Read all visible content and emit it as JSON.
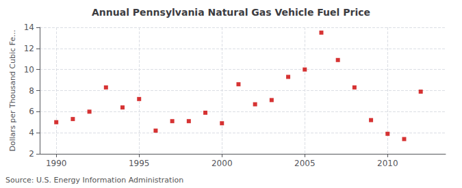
{
  "chart_data": {
    "type": "scatter",
    "title": "Annual Pennsylvania Natural Gas Vehicle Fuel Price",
    "ylabel": "Dollars per Thousand Cubic Fe...",
    "source": "Source: U.S. Energy Information Administration",
    "x": [
      1990,
      1991,
      1992,
      1993,
      1994,
      1995,
      1996,
      1997,
      1998,
      1999,
      2000,
      2001,
      2002,
      2003,
      2004,
      2005,
      2006,
      2007,
      2008,
      2009,
      2010,
      2011,
      2012
    ],
    "values": [
      5.0,
      5.3,
      6.0,
      8.3,
      6.4,
      7.2,
      4.2,
      5.1,
      5.1,
      5.9,
      4.9,
      8.6,
      6.7,
      7.1,
      9.3,
      10.0,
      13.5,
      10.9,
      8.3,
      5.2,
      3.9,
      3.4,
      7.9
    ],
    "color": "#cc0000",
    "marker": "square",
    "xlim": [
      1989,
      2013.5
    ],
    "xticks": [
      1990,
      1995,
      2000,
      2005,
      2010
    ],
    "ylim": [
      2,
      14
    ],
    "yticks": [
      2,
      4,
      6,
      8,
      10,
      12,
      14
    ],
    "grid": true
  }
}
